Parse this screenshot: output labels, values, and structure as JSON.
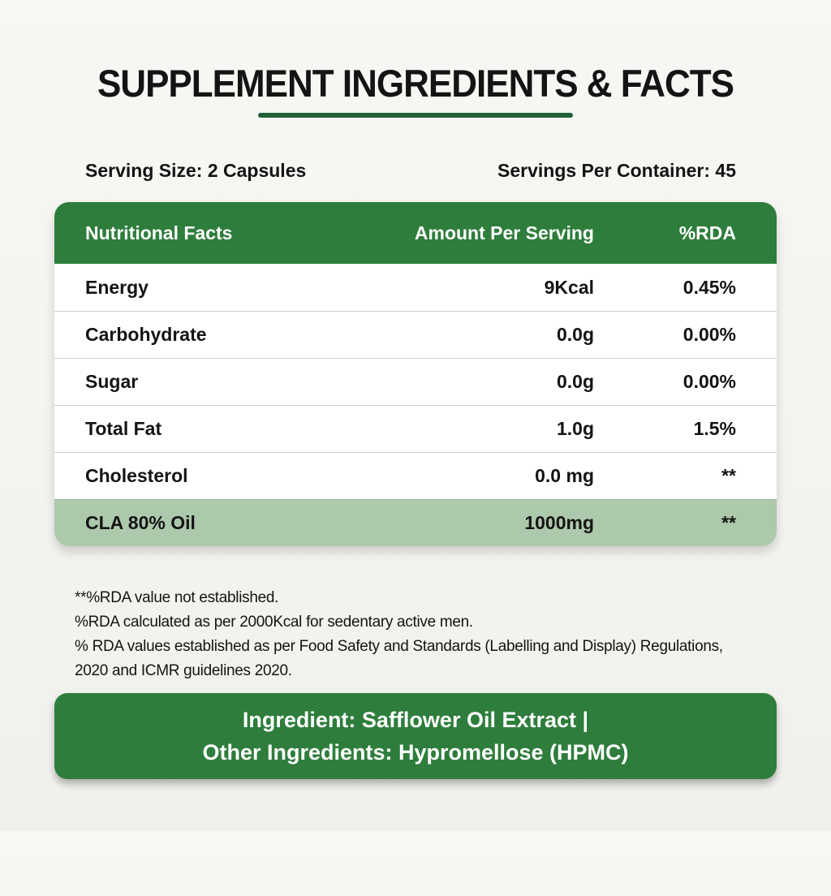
{
  "page": {
    "title": "SUPPLEMENT INGREDIENTS & FACTS",
    "serving_size": "Serving Size: 2 Capsules",
    "servings_per_container": "Servings Per Container: 45"
  },
  "facts_table": {
    "headers": {
      "name": "Nutritional Facts",
      "amount": "Amount Per Serving",
      "rda": "%RDA"
    },
    "rows": [
      {
        "name": "Energy",
        "amount": "9Kcal",
        "rda": "0.45%"
      },
      {
        "name": "Carbohydrate",
        "amount": "0.0g",
        "rda": "0.00%"
      },
      {
        "name": "Sugar",
        "amount": "0.0g",
        "rda": "0.00%"
      },
      {
        "name": "Total Fat",
        "amount": "1.0g",
        "rda": "1.5%"
      },
      {
        "name": "Cholesterol",
        "amount": "0.0 mg",
        "rda": "**"
      },
      {
        "name": "CLA 80% Oil",
        "amount": "1000mg",
        "rda": "**"
      }
    ]
  },
  "footnotes": [
    "**%RDA value not established.",
    "%RDA calculated as per 2000Kcal for sedentary active men.",
    "% RDA values established as per Food Safety and Standards (Labelling and Display) Regulations, 2020 and ICMR guidelines 2020."
  ],
  "ingredients_box": {
    "line1": "Ingredient: Safflower Oil Extract |",
    "line2": "Other Ingredients: Hypromellose (HPMC)"
  },
  "colors": {
    "header_green": "#2e7d3c",
    "underline_green": "#206038",
    "highlight_row_green": "#adc9ac",
    "background": "#f5f5f2",
    "text": "#141414"
  }
}
